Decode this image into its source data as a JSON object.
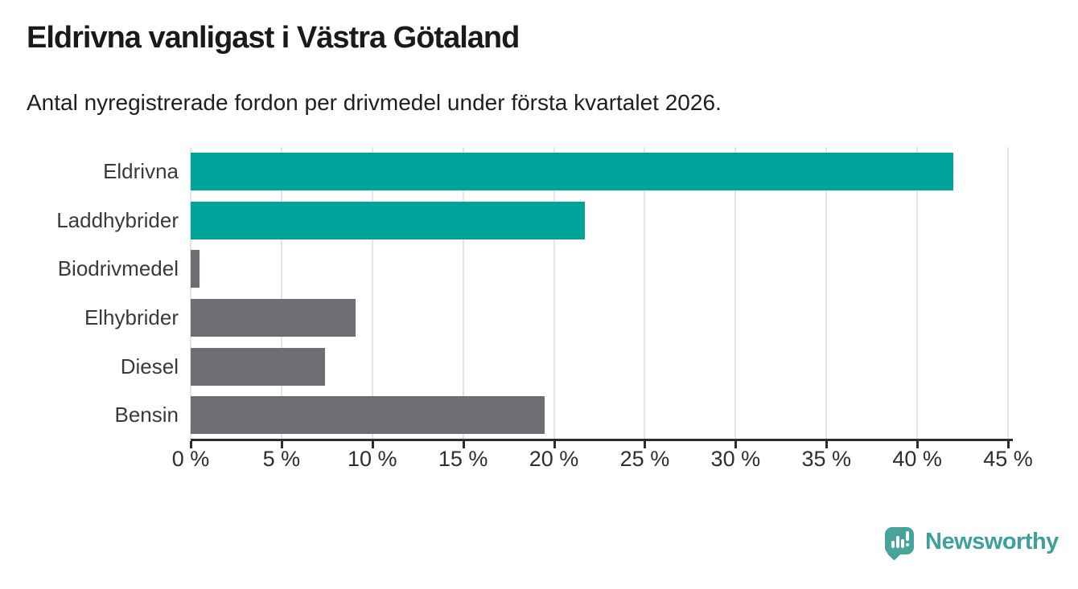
{
  "meta": {
    "title": "Eldrivna vanligast i Västra Götaland",
    "subtitle": "Antal nyregistrerade fordon per drivmedel under första kvartalet 2026."
  },
  "chart_data": {
    "type": "bar",
    "orientation": "horizontal",
    "title": "Eldrivna vanligast i Västra Götaland",
    "subtitle": "Antal nyregistrerade fordon per drivmedel under första kvartalet 2026.",
    "categories": [
      "Eldrivna",
      "Laddhybrider",
      "Biodrivmedel",
      "Elhybrider",
      "Diesel",
      "Bensin"
    ],
    "values": [
      42.0,
      21.7,
      0.5,
      9.1,
      7.4,
      19.5
    ],
    "unit": "%",
    "xlabel": "",
    "ylabel": "",
    "xlim": [
      0,
      45
    ],
    "x_tick_values": [
      0,
      5,
      10,
      15,
      20,
      25,
      30,
      35,
      40,
      45
    ],
    "x_tick_labels": [
      "0 %",
      "5 %",
      "10 %",
      "15 %",
      "20 %",
      "25 %",
      "30 %",
      "35 %",
      "40 %",
      "45 %"
    ],
    "grid": "vertical-gridlines-on",
    "legend": "none",
    "colors": {
      "accent": "#00a39a",
      "neutral": "#6d6d73",
      "gridline": "#e5e5e5",
      "axis": "#2d2d2d"
    },
    "bar_color_roles": [
      "accent",
      "accent",
      "neutral",
      "neutral",
      "neutral",
      "neutral"
    ]
  },
  "footer": {
    "brand": "Newsworthy",
    "logo_icon": "newsworthy-speech-bubble-bar-chart-icon",
    "brand_color": "#3ea09a"
  }
}
